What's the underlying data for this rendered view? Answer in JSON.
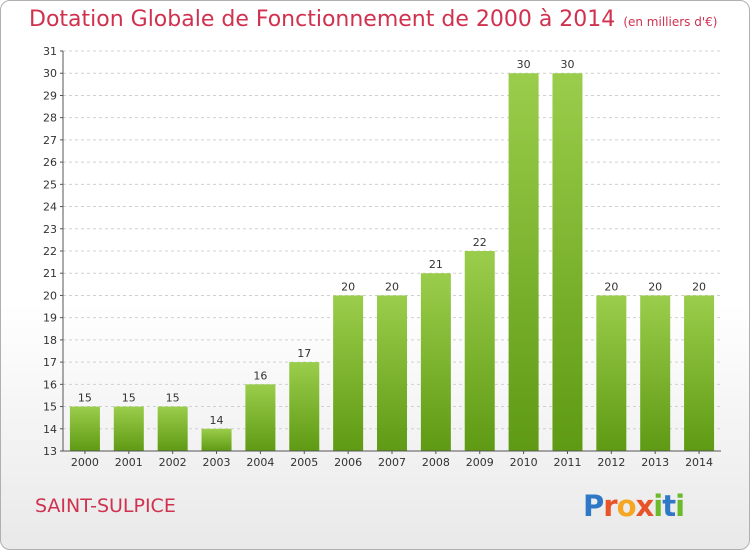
{
  "title": "Dotation Globale de Fonctionnement de 2000 à 2014",
  "unit": "(en milliers d'€)",
  "commune": "SAINT-SULPICE",
  "logo": "Proxiti",
  "colors": {
    "title": "#d0314f",
    "bar_light": "#9acd4b",
    "bar_dark": "#5f9a14",
    "grid": "#d0d0d0"
  },
  "chart_data": {
    "type": "bar",
    "title": "Dotation Globale de Fonctionnement de 2000 à 2014",
    "ylabel": "",
    "xlabel": "",
    "categories": [
      "2000",
      "2001",
      "2002",
      "2003",
      "2004",
      "2005",
      "2006",
      "2007",
      "2008",
      "2009",
      "2010",
      "2011",
      "2012",
      "2013",
      "2014"
    ],
    "values": [
      15,
      15,
      15,
      14,
      16,
      17,
      20,
      20,
      21,
      22,
      30,
      30,
      20,
      20,
      20
    ],
    "ylim": [
      13,
      31
    ],
    "yticks": [
      13,
      14,
      15,
      16,
      17,
      18,
      19,
      20,
      21,
      22,
      23,
      24,
      25,
      26,
      27,
      28,
      29,
      30,
      31
    ],
    "grid": true
  }
}
